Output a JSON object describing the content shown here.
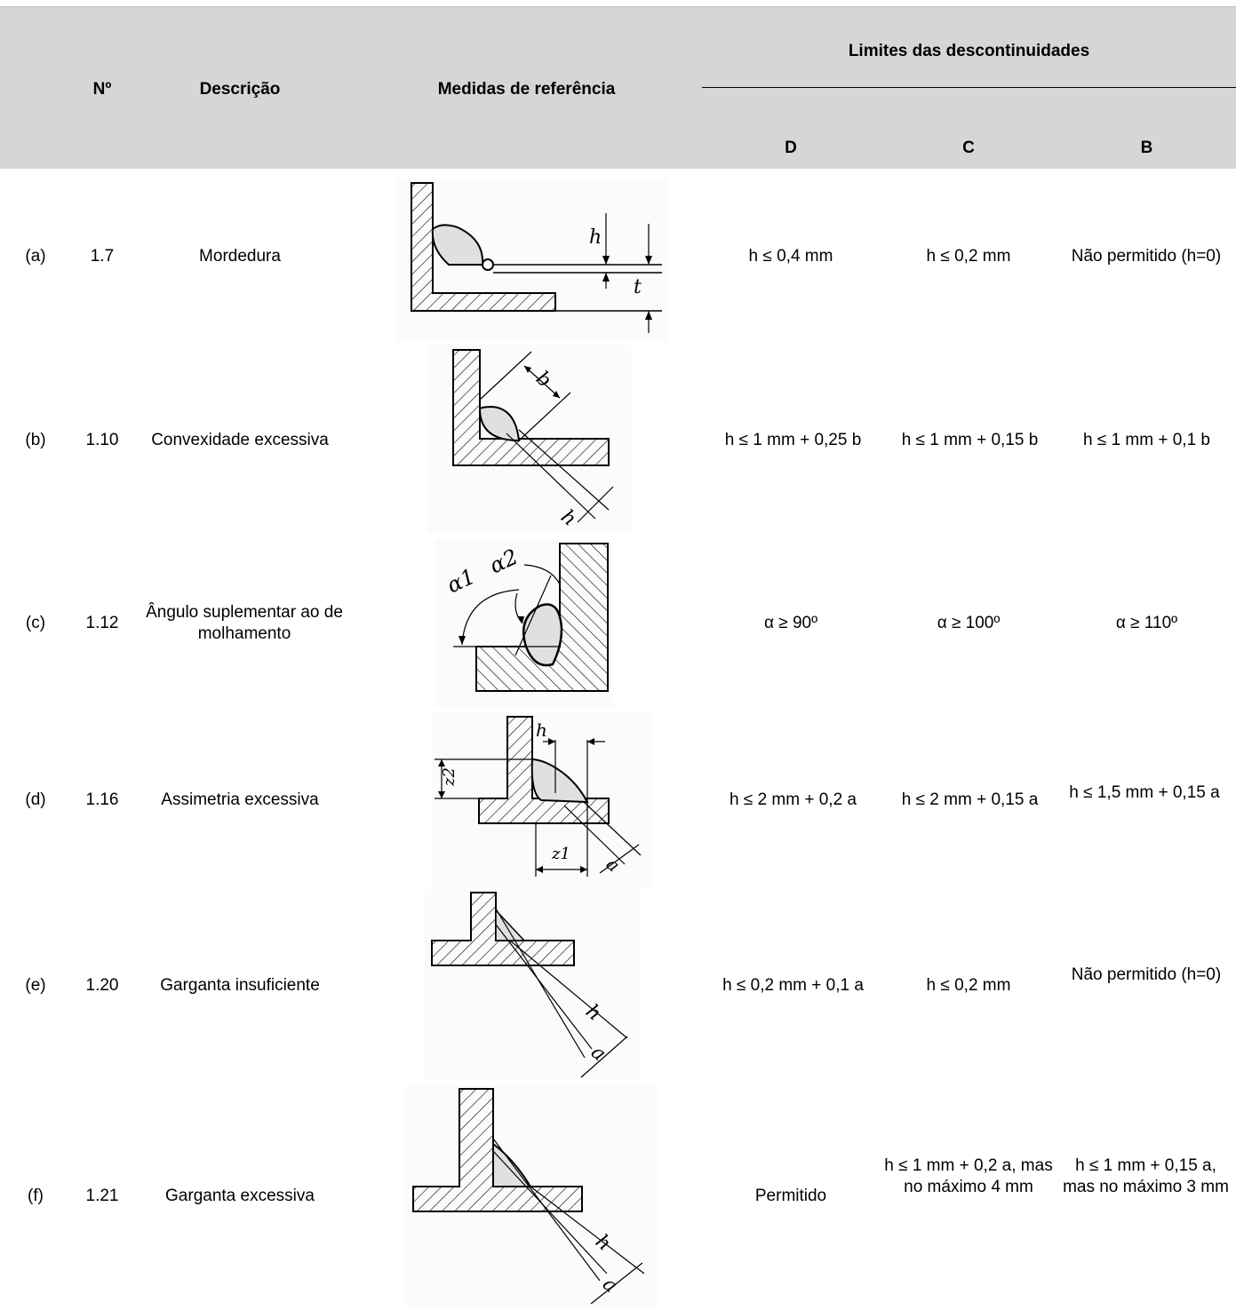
{
  "header": {
    "col_no": "Nº",
    "col_desc": "Descrição",
    "col_ref": "Medidas de referência",
    "col_limits": "Limites das descontinuidades",
    "level_d": "D",
    "level_c": "C",
    "level_b": "B"
  },
  "rows": [
    {
      "tag": "(a)",
      "no": "1.7",
      "desc": "Mordedura",
      "d": "h ≤ 0,4 mm",
      "c": "h ≤ 0,2 mm",
      "b": "Não permitido (h=0)",
      "fig_labels": [
        "h",
        "t"
      ]
    },
    {
      "tag": "(b)",
      "no": "1.10",
      "desc": "Convexidade excessiva",
      "d": "h ≤ 1 mm + 0,25 b",
      "c": "h ≤ 1 mm + 0,15 b",
      "b": "h ≤ 1 mm + 0,1 b",
      "fig_labels": [
        "b",
        "h"
      ]
    },
    {
      "tag": "(c)",
      "no": "1.12",
      "desc": "Ângulo suplementar ao de molhamento",
      "d": "α ≥ 90º",
      "c": "α ≥ 100º",
      "b": "α ≥ 110º",
      "fig_labels": [
        "α1",
        "α2"
      ]
    },
    {
      "tag": "(d)",
      "no": "1.16",
      "desc": "Assimetria excessiva",
      "d": "h ≤ 2 mm + 0,2 a",
      "c": "h ≤ 2 mm + 0,15 a",
      "b": "h ≤ 1,5 mm + 0,15 a",
      "fig_labels": [
        "h",
        "z2",
        "z1",
        "a"
      ]
    },
    {
      "tag": "(e)",
      "no": "1.20",
      "desc": "Garganta insuficiente",
      "d": "h ≤ 0,2 mm + 0,1 a",
      "c": "h ≤ 0,2 mm",
      "b": "Não permitido (h=0)",
      "fig_labels": [
        "h",
        "a"
      ]
    },
    {
      "tag": "(f)",
      "no": "1.21",
      "desc": "Garganta excessiva",
      "d": "Permitido",
      "c": "h ≤ 1 mm + 0,2 a, mas no máximo 4 mm",
      "b": "h ≤ 1 mm + 0,15 a, mas no máximo 3 mm",
      "fig_labels": [
        "h",
        "a"
      ]
    }
  ]
}
